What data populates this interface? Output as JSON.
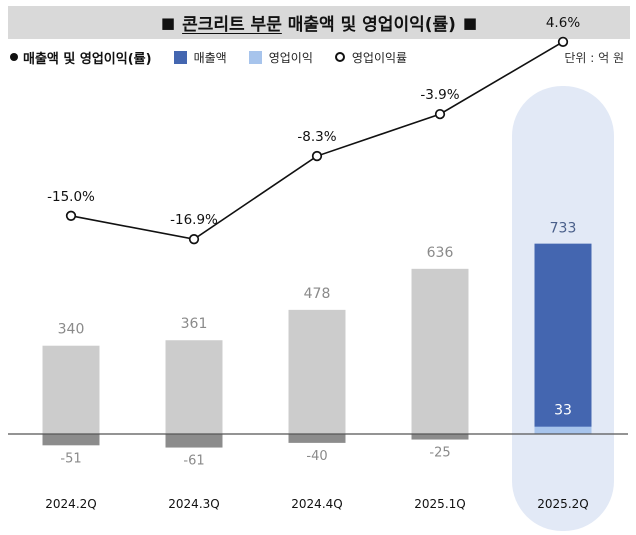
{
  "title": {
    "prefix_marker": "■",
    "underlined": "콘크리트 부문",
    "rest": "매출액 및 영업이익(률)",
    "suffix_marker": "■"
  },
  "legend": {
    "main_label": "매출액 및 영업이익(률)",
    "items": [
      {
        "label": "매출액",
        "color": "#4466b0",
        "kind": "square"
      },
      {
        "label": "영업이익",
        "color": "#a7c4ec",
        "kind": "square"
      },
      {
        "label": "영업이익률",
        "color": "#111111",
        "kind": "circle"
      }
    ],
    "unit": "단위 : 억 원"
  },
  "chart_data": {
    "type": "bar",
    "categories": [
      "2024.2Q",
      "2024.3Q",
      "2024.4Q",
      "2025.1Q",
      "2025.2Q"
    ],
    "series": [
      {
        "name": "매출액",
        "values": [
          340,
          361,
          478,
          636,
          733
        ],
        "labels": [
          "340",
          "361",
          "478",
          "636",
          "733"
        ]
      },
      {
        "name": "영업이익",
        "values": [
          -51,
          -61,
          -40,
          -25,
          33
        ],
        "labels": [
          "-51",
          "-61",
          "-40",
          "-25",
          "33"
        ]
      },
      {
        "name": "영업이익률",
        "values": [
          -15.0,
          -16.9,
          -8.3,
          -3.9,
          4.6
        ],
        "labels": [
          "-15.0%",
          "-16.9%",
          "-8.3%",
          "-3.9%",
          "4.6%"
        ],
        "type": "line"
      }
    ],
    "highlight_category": "2025.2Q",
    "colors": {
      "revenue_past": "#cccccc",
      "revenue_highlight": "#4466b0",
      "profit_past": "#8c8c8c",
      "profit_highlight": "#a7c4ec",
      "highlight_band": "#e2e9f6",
      "line": "#111111"
    },
    "grid": false,
    "legend_position": "top-left"
  }
}
